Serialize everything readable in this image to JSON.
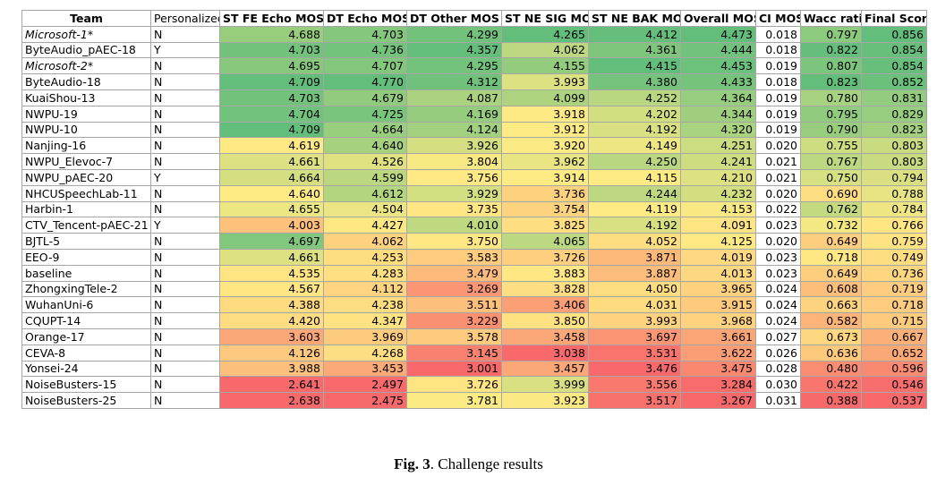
{
  "table": {
    "columns": [
      "Team",
      "Personalized",
      "ST FE Echo MOS",
      "DT Echo MOS",
      "DT Other MOS",
      "ST NE SIG MOS",
      "ST NE BAK MOS",
      "Overall MOS",
      "CI MOS",
      "Wacc ratio",
      "Final Score"
    ],
    "heatmap_colors": {
      "low": "#f8696b",
      "mid": "#ffeb84",
      "high": "#63be7b"
    },
    "heatmap_columns": [
      2,
      3,
      4,
      5,
      6,
      7,
      9,
      10
    ],
    "rows": [
      {
        "team": "Microsoft-1*",
        "italic": true,
        "values": [
          "N",
          "4.688",
          "4.703",
          "4.299",
          "4.265",
          "4.412",
          "4.473",
          "0.018",
          "0.797",
          "0.856"
        ]
      },
      {
        "team": "ByteAudio_pAEC-18",
        "italic": false,
        "values": [
          "Y",
          "4.703",
          "4.736",
          "4.357",
          "4.062",
          "4.361",
          "4.444",
          "0.018",
          "0.822",
          "0.854"
        ]
      },
      {
        "team": "Microsoft-2*",
        "italic": true,
        "values": [
          "N",
          "4.695",
          "4.707",
          "4.295",
          "4.155",
          "4.415",
          "4.453",
          "0.019",
          "0.807",
          "0.854"
        ]
      },
      {
        "team": "ByteAudio-18",
        "italic": false,
        "values": [
          "N",
          "4.709",
          "4.770",
          "4.312",
          "3.993",
          "4.380",
          "4.433",
          "0.018",
          "0.823",
          "0.852"
        ]
      },
      {
        "team": "KuaiShou-13",
        "italic": false,
        "values": [
          "N",
          "4.703",
          "4.679",
          "4.087",
          "4.099",
          "4.252",
          "4.364",
          "0.019",
          "0.780",
          "0.831"
        ]
      },
      {
        "team": "NWPU-19",
        "italic": false,
        "values": [
          "N",
          "4.704",
          "4.725",
          "4.169",
          "3.918",
          "4.202",
          "4.344",
          "0.019",
          "0.795",
          "0.829"
        ]
      },
      {
        "team": "NWPU-10",
        "italic": false,
        "values": [
          "N",
          "4.709",
          "4.664",
          "4.124",
          "3.912",
          "4.192",
          "4.320",
          "0.019",
          "0.790",
          "0.823"
        ]
      },
      {
        "team": "Nanjing-16",
        "italic": false,
        "values": [
          "N",
          "4.619",
          "4.640",
          "3.926",
          "3.920",
          "4.149",
          "4.251",
          "0.020",
          "0.755",
          "0.803"
        ]
      },
      {
        "team": "NWPU_Elevoc-7",
        "italic": false,
        "values": [
          "N",
          "4.661",
          "4.526",
          "3.804",
          "3.962",
          "4.250",
          "4.241",
          "0.021",
          "0.767",
          "0.803"
        ]
      },
      {
        "team": "NWPU_pAEC-20",
        "italic": false,
        "values": [
          "Y",
          "4.664",
          "4.599",
          "3.756",
          "3.914",
          "4.115",
          "4.210",
          "0.021",
          "0.750",
          "0.794"
        ]
      },
      {
        "team": "NHCUSpeechLab-11",
        "italic": false,
        "values": [
          "N",
          "4.640",
          "4.612",
          "3.929",
          "3.736",
          "4.244",
          "4.232",
          "0.020",
          "0.690",
          "0.788"
        ]
      },
      {
        "team": "Harbin-1",
        "italic": false,
        "values": [
          "N",
          "4.655",
          "4.504",
          "3.735",
          "3.754",
          "4.119",
          "4.153",
          "0.022",
          "0.762",
          "0.784"
        ]
      },
      {
        "team": "CTV_Tencent-pAEC-21",
        "italic": false,
        "values": [
          "Y",
          "4.003",
          "4.427",
          "4.010",
          "3.825",
          "4.192",
          "4.091",
          "0.023",
          "0.732",
          "0.766"
        ]
      },
      {
        "team": "BJTL-5",
        "italic": false,
        "values": [
          "N",
          "4.697",
          "4.062",
          "3.750",
          "4.065",
          "4.052",
          "4.125",
          "0.020",
          "0.649",
          "0.759"
        ]
      },
      {
        "team": "EEO-9",
        "italic": false,
        "values": [
          "N",
          "4.661",
          "4.253",
          "3.583",
          "3.726",
          "3.871",
          "4.019",
          "0.023",
          "0.718",
          "0.749"
        ]
      },
      {
        "team": "baseline",
        "italic": false,
        "values": [
          "N",
          "4.535",
          "4.283",
          "3.479",
          "3.883",
          "3.887",
          "4.013",
          "0.023",
          "0.649",
          "0.736"
        ]
      },
      {
        "team": "ZhongxingTele-2",
        "italic": false,
        "values": [
          "N",
          "4.567",
          "4.112",
          "3.269",
          "3.828",
          "4.050",
          "3.965",
          "0.024",
          "0.608",
          "0.719"
        ]
      },
      {
        "team": "WuhanUni-6",
        "italic": false,
        "values": [
          "N",
          "4.388",
          "4.238",
          "3.511",
          "3.406",
          "4.031",
          "3.915",
          "0.024",
          "0.663",
          "0.718"
        ]
      },
      {
        "team": "CQUPT-14",
        "italic": false,
        "values": [
          "N",
          "4.420",
          "4.347",
          "3.229",
          "3.850",
          "3.993",
          "3.968",
          "0.024",
          "0.582",
          "0.715"
        ]
      },
      {
        "team": "Orange-17",
        "italic": false,
        "values": [
          "N",
          "3.603",
          "3.969",
          "3.578",
          "3.458",
          "3.697",
          "3.661",
          "0.027",
          "0.673",
          "0.667"
        ]
      },
      {
        "team": "CEVA-8",
        "italic": false,
        "values": [
          "N",
          "4.126",
          "4.268",
          "3.145",
          "3.038",
          "3.531",
          "3.622",
          "0.026",
          "0.636",
          "0.652"
        ]
      },
      {
        "team": "Yonsei-24",
        "italic": false,
        "values": [
          "N",
          "3.988",
          "3.453",
          "3.001",
          "3.457",
          "3.476",
          "3.475",
          "0.028",
          "0.480",
          "0.596"
        ]
      },
      {
        "team": "NoiseBusters-15",
        "italic": false,
        "values": [
          "N",
          "2.641",
          "2.497",
          "3.726",
          "3.999",
          "3.556",
          "3.284",
          "0.030",
          "0.422",
          "0.546"
        ]
      },
      {
        "team": "NoiseBusters-25",
        "italic": false,
        "values": [
          "N",
          "2.638",
          "2.475",
          "3.781",
          "3.923",
          "3.517",
          "3.267",
          "0.031",
          "0.388",
          "0.537"
        ]
      }
    ]
  },
  "caption": {
    "label": "Fig. 3",
    "text": ". Challenge results"
  }
}
